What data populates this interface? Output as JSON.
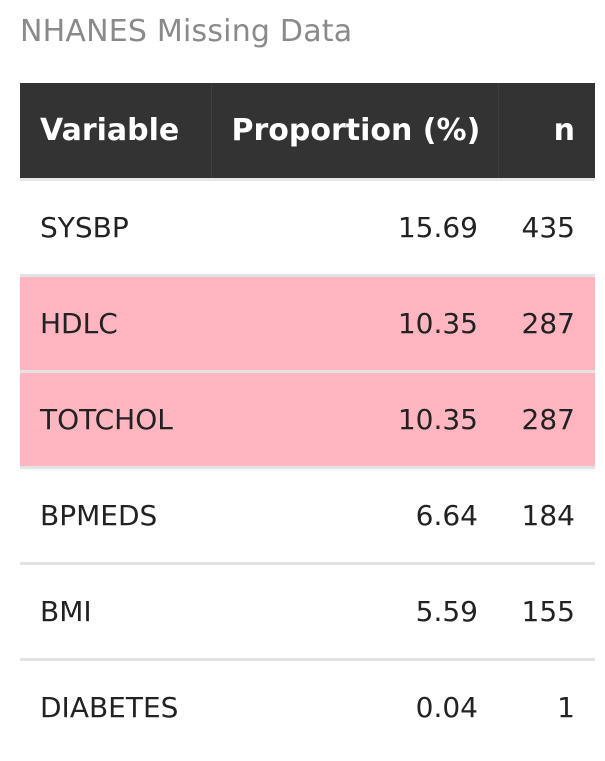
{
  "caption": "NHANES Missing Data",
  "headers": {
    "variable": "Variable",
    "proportion": "Proportion (%)",
    "n": "n"
  },
  "colors": {
    "header_bg": "#333333",
    "header_text": "#ffffff",
    "highlight_row": "#ffb6c1",
    "caption_text": "#8a8a8a"
  },
  "rows": [
    {
      "variable": "SYSBP",
      "proportion": "15.69",
      "n": "435",
      "highlighted": false
    },
    {
      "variable": "HDLC",
      "proportion": "10.35",
      "n": "287",
      "highlighted": true
    },
    {
      "variable": "TOTCHOL",
      "proportion": "10.35",
      "n": "287",
      "highlighted": true
    },
    {
      "variable": "BPMEDS",
      "proportion": "6.64",
      "n": "184",
      "highlighted": false
    },
    {
      "variable": "BMI",
      "proportion": "5.59",
      "n": "155",
      "highlighted": false
    },
    {
      "variable": "DIABETES",
      "proportion": "0.04",
      "n": "1",
      "highlighted": false
    }
  ]
}
